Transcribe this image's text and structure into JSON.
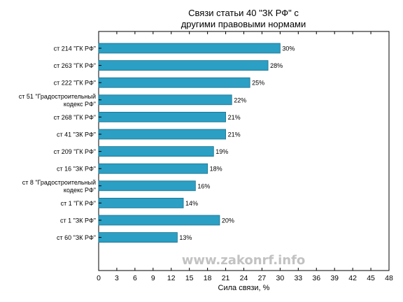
{
  "chart_data": {
    "type": "bar",
    "orientation": "horizontal",
    "title_lines": [
      "Связи статьи 40 \"ЗК РФ\" с",
      "другими правовыми нормами"
    ],
    "categories": [
      [
        "ст 214 \"ГК РФ\""
      ],
      [
        "ст 263 \"ГК РФ\""
      ],
      [
        "ст 222 \"ГК РФ\""
      ],
      [
        "ст 51 \"Градостроительный",
        "кодекс РФ\""
      ],
      [
        "ст 268 \"ГК РФ\""
      ],
      [
        "ст 41 \"ЗК РФ\""
      ],
      [
        "ст 209 \"ГК РФ\""
      ],
      [
        "ст 16 \"ЗК РФ\""
      ],
      [
        "ст 8 \"Градостроительный",
        "кодекс РФ\""
      ],
      [
        "ст 1 \"ГК РФ\""
      ],
      [
        "ст 1 \"ЗК РФ\""
      ],
      [
        "ст 60 \"ЗК РФ\""
      ]
    ],
    "values": [
      30,
      28,
      25,
      22,
      21,
      21,
      19,
      18,
      16,
      14,
      20,
      13
    ],
    "value_labels": [
      "30%",
      "28%",
      "25%",
      "22%",
      "21%",
      "21%",
      "19%",
      "18%",
      "16%",
      "14%",
      "20%",
      "13%"
    ],
    "xlabel": "Сила связи, %",
    "xlim": [
      0,
      48
    ],
    "xticks": [
      0,
      3,
      6,
      9,
      12,
      15,
      18,
      21,
      24,
      27,
      30,
      33,
      36,
      39,
      42,
      45,
      48
    ],
    "grid": false,
    "bar_color": "#2b9fc4",
    "bar_edge_color": "#1a6f8c"
  },
  "watermark": "www.zakonrf.info"
}
